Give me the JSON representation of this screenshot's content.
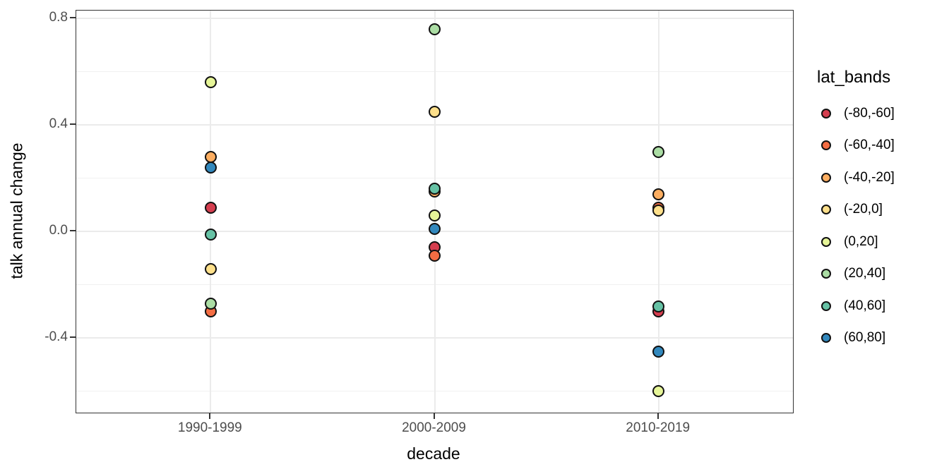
{
  "chart_data": {
    "type": "scatter",
    "title": "",
    "xlabel": "decade",
    "ylabel": "talk annual change",
    "categories": [
      "1990-1999",
      "2000-2009",
      "2010-2019"
    ],
    "legend_title": "lat_bands",
    "legend_position": "right",
    "grid": true,
    "ylim": [
      -0.68,
      0.83
    ],
    "yticks_major": [
      0.8,
      0.4,
      0.0,
      -0.4
    ],
    "ytick_labels": [
      "0.8",
      "0.4",
      "0.0",
      "-0.4"
    ],
    "yticks_minor": [
      0.6,
      0.2,
      -0.2,
      -0.6
    ],
    "series": [
      {
        "name": "(-80,-60]",
        "color": "#D53E4F",
        "values": [
          0.09,
          -0.06,
          -0.3
        ]
      },
      {
        "name": "(-60,-40]",
        "color": "#F46D43",
        "values": [
          -0.3,
          -0.09,
          0.09
        ]
      },
      {
        "name": "(-40,-20]",
        "color": "#FDAE61",
        "values": [
          0.28,
          0.15,
          0.14
        ]
      },
      {
        "name": "(-20,0]",
        "color": "#FEE08B",
        "values": [
          -0.14,
          0.45,
          0.08
        ]
      },
      {
        "name": "(0,20]",
        "color": "#E6F598",
        "values": [
          0.56,
          0.06,
          -0.6
        ]
      },
      {
        "name": "(20,40]",
        "color": "#ABDDA4",
        "values": [
          -0.27,
          0.76,
          0.3
        ]
      },
      {
        "name": "(40,60]",
        "color": "#66C2A5",
        "values": [
          -0.01,
          0.16,
          -0.28
        ]
      },
      {
        "name": "(60,80]",
        "color": "#3288BD",
        "values": [
          0.24,
          0.01,
          -0.45
        ]
      }
    ],
    "point_outline_color": "#111111",
    "text_color": "#000000",
    "tick_label_color": "#4D4D4D",
    "grid_color": "#EBEBEB",
    "panel_border_color": "#333333"
  }
}
